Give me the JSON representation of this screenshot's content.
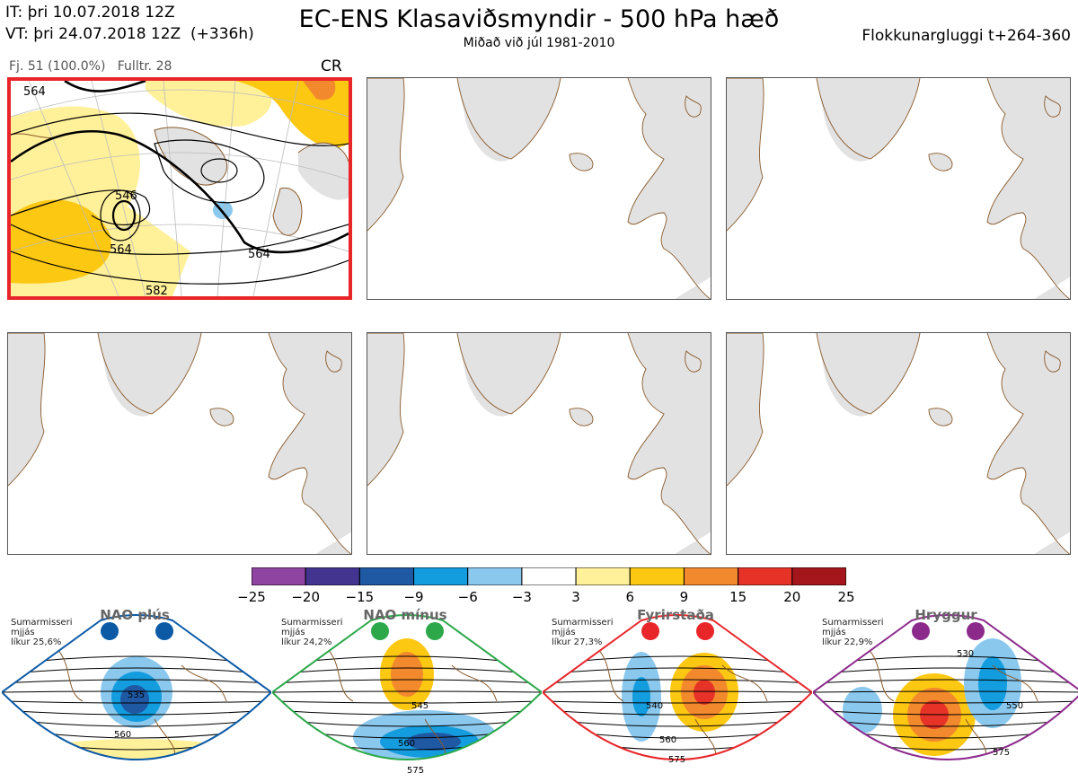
{
  "header": {
    "it": "IT: þri 10.07.2018 12Z",
    "vt": "VT: þri 24.07.2018 12Z  (+336h)",
    "title": "EC-ENS Klasaviðsmyndir - 500 hPa hæð",
    "subtitle": "Miðað við júl 1981-2010",
    "window": "Flokkunargluggi t+264-360"
  },
  "panel1": {
    "info": "Fj. 51 (100.0%)   Fulltr. 28",
    "regime": "CR",
    "contour_labels": [
      "564",
      "546",
      "564",
      "564",
      "582"
    ],
    "highlight_color": "#e8262a"
  },
  "colorbar": {
    "ticks": [
      "−25",
      "−20",
      "−15",
      "−9",
      "−6",
      "−3",
      "3",
      "6",
      "9",
      "15",
      "20",
      "25"
    ],
    "colors": [
      "#8e44a0",
      "#43358f",
      "#1f58a3",
      "#139cde",
      "#8ac8ee",
      "#ffffff",
      "#fff09a",
      "#fdc812",
      "#f3892d",
      "#e73327",
      "#a4161b"
    ]
  },
  "climatology": [
    {
      "name": "NAO plús",
      "desc": "Sumarmisseri\nmjjás\nlíkur 25,6%",
      "color": "#0c5aa6",
      "contours": [
        "535",
        "560"
      ]
    },
    {
      "name": "NAO mínus",
      "desc": "Sumarmisseri\nmjjás\nlíkur 24,2%",
      "color": "#2ca84a",
      "contours": [
        "545",
        "560",
        "575"
      ]
    },
    {
      "name": "Fyrirstaða",
      "desc": "Sumarmisseri\nmjjás\nlíkur 27,3%",
      "color": "#e8262a",
      "contours": [
        "540",
        "560",
        "575"
      ]
    },
    {
      "name": "Hryggur",
      "desc": "Sumarmisseri\nmjjás\nlíkur 22,9%",
      "color": "#8c2a8c",
      "contours": [
        "530",
        "550",
        "575"
      ]
    }
  ]
}
